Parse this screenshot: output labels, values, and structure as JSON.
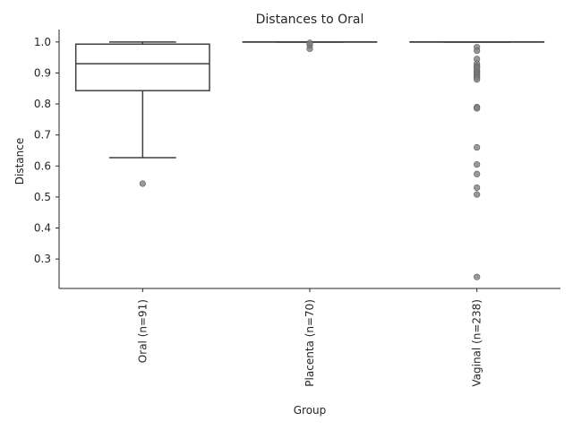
{
  "chart_data": {
    "type": "box",
    "title": "Distances to Oral",
    "xlabel": "Group",
    "ylabel": "Distance",
    "ylim": [
      0.205,
      1.04
    ],
    "yticks": [
      "0.3",
      "0.4",
      "0.5",
      "0.6",
      "0.7",
      "0.8",
      "0.9",
      "1.0"
    ],
    "grid": false,
    "categories": [
      "Oral (n=91)",
      "Placenta (n=70)",
      "Vaginal (n=238)"
    ],
    "boxes": [
      {
        "whislo": 0.627,
        "q1": 0.843,
        "med": 0.93,
        "q3": 0.993,
        "whishi": 1.0,
        "fliers": [
          0.543
        ]
      },
      {
        "whislo": 1.0,
        "q1": 1.0,
        "med": 1.0,
        "q3": 1.0,
        "whishi": 1.0,
        "fliers": [
          0.978,
          0.99,
          0.997
        ]
      },
      {
        "whislo": 1.0,
        "q1": 1.0,
        "med": 1.0,
        "q3": 1.0,
        "whishi": 1.0,
        "fliers": [
          0.983,
          0.972,
          0.945,
          0.93,
          0.922,
          0.918,
          0.912,
          0.905,
          0.9,
          0.895,
          0.89,
          0.885,
          0.879,
          0.79,
          0.786,
          0.66,
          0.605,
          0.574,
          0.53,
          0.508,
          0.242
        ]
      }
    ]
  }
}
